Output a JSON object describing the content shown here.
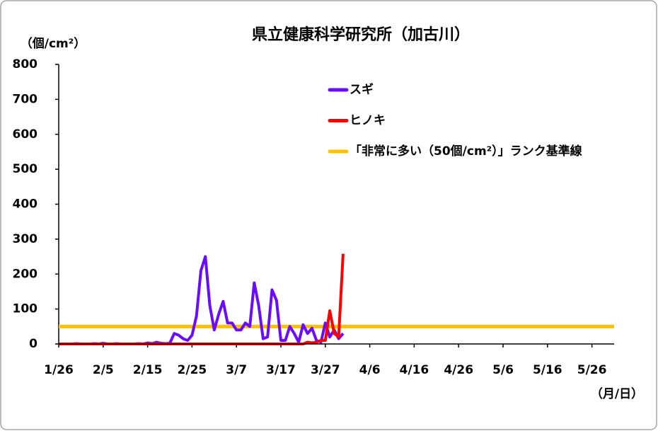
{
  "chart_data": {
    "type": "line",
    "title": "県立健康科学研究所（加古川）",
    "y_label": "（個/cm²）",
    "x_label": "（月/日）",
    "categories": [
      "1/26",
      null,
      null,
      null,
      null,
      null,
      null,
      null,
      null,
      null,
      "2/5",
      null,
      null,
      null,
      null,
      null,
      null,
      null,
      null,
      null,
      "2/15",
      null,
      null,
      null,
      null,
      null,
      null,
      null,
      null,
      null,
      "2/25",
      null,
      null,
      null,
      null,
      null,
      null,
      null,
      null,
      null,
      "3/7",
      null,
      null,
      null,
      null,
      null,
      null,
      null,
      null,
      null,
      "3/17",
      null,
      null,
      null,
      null,
      null,
      null,
      null,
      null,
      null,
      "3/27",
      null,
      null,
      null,
      null,
      null,
      null,
      null,
      null,
      null,
      "4/6",
      null,
      null,
      null,
      null,
      null,
      null,
      null,
      null,
      null,
      "4/16",
      null,
      null,
      null,
      null,
      null,
      null,
      null,
      null,
      null,
      "4/26",
      null,
      null,
      null,
      null,
      null,
      null,
      null,
      null,
      null,
      "5/6",
      null,
      null,
      null,
      null,
      null,
      null,
      null,
      null,
      null,
      "5/16",
      null,
      null,
      null,
      null,
      null,
      null,
      null,
      null,
      null,
      "5/26",
      null,
      null,
      null,
      null,
      null
    ],
    "series": [
      {
        "name": "スギ",
        "color": "#6a0dff",
        "values": [
          0,
          0,
          0,
          0,
          1,
          0,
          0,
          0,
          1,
          0,
          2,
          0,
          0,
          1,
          0,
          0,
          0,
          0,
          1,
          0,
          3,
          1,
          5,
          2,
          1,
          2,
          30,
          25,
          15,
          10,
          25,
          80,
          210,
          250,
          110,
          40,
          85,
          122,
          60,
          60,
          40,
          40,
          60,
          50,
          175,
          110,
          15,
          20,
          155,
          125,
          10,
          10,
          50,
          30,
          5,
          55,
          30,
          45,
          10,
          5,
          60,
          20,
          40,
          15,
          30,
          null,
          null,
          null,
          null,
          null,
          null,
          null,
          null,
          null,
          null,
          null,
          null,
          null,
          null,
          null,
          null,
          null,
          null,
          null,
          null,
          null,
          null,
          null,
          null,
          null,
          null,
          null,
          null,
          null,
          null,
          null,
          null,
          null,
          null,
          null,
          null,
          null,
          null,
          null,
          null,
          null,
          null,
          null,
          null,
          null,
          null,
          null,
          null,
          null,
          null,
          null,
          null,
          null,
          null,
          null,
          null,
          null,
          null,
          null,
          null,
          null
        ]
      },
      {
        "name": "ヒノキ",
        "color": "#ff0000",
        "values": [
          0,
          0,
          0,
          0,
          0,
          0,
          0,
          0,
          0,
          0,
          0,
          0,
          0,
          0,
          0,
          0,
          0,
          0,
          0,
          0,
          0,
          0,
          0,
          0,
          0,
          0,
          0,
          0,
          0,
          0,
          0,
          0,
          0,
          0,
          0,
          0,
          0,
          0,
          0,
          0,
          0,
          0,
          0,
          0,
          0,
          0,
          0,
          0,
          0,
          0,
          0,
          0,
          0,
          0,
          0,
          0,
          5,
          3,
          5,
          10,
          10,
          95,
          30,
          20,
          258,
          null,
          null,
          null,
          null,
          null,
          null,
          null,
          null,
          null,
          null,
          null,
          null,
          null,
          null,
          null,
          null,
          null,
          null,
          null,
          null,
          null,
          null,
          null,
          null,
          null,
          null,
          null,
          null,
          null,
          null,
          null,
          null,
          null,
          null,
          null,
          null,
          null,
          null,
          null,
          null,
          null,
          null,
          null,
          null,
          null,
          null,
          null,
          null,
          null,
          null,
          null,
          null,
          null,
          null,
          null,
          null,
          null,
          null,
          null,
          null,
          null
        ]
      }
    ],
    "reference_lines": [
      {
        "name": "「非常に多い（50個/cm²）」ランク基準線",
        "value": 50,
        "color": "#ffc000"
      }
    ],
    "ylim": [
      0,
      800
    ],
    "yticks": [
      0,
      100,
      200,
      300,
      400,
      500,
      600,
      700,
      800
    ],
    "grid": false
  }
}
